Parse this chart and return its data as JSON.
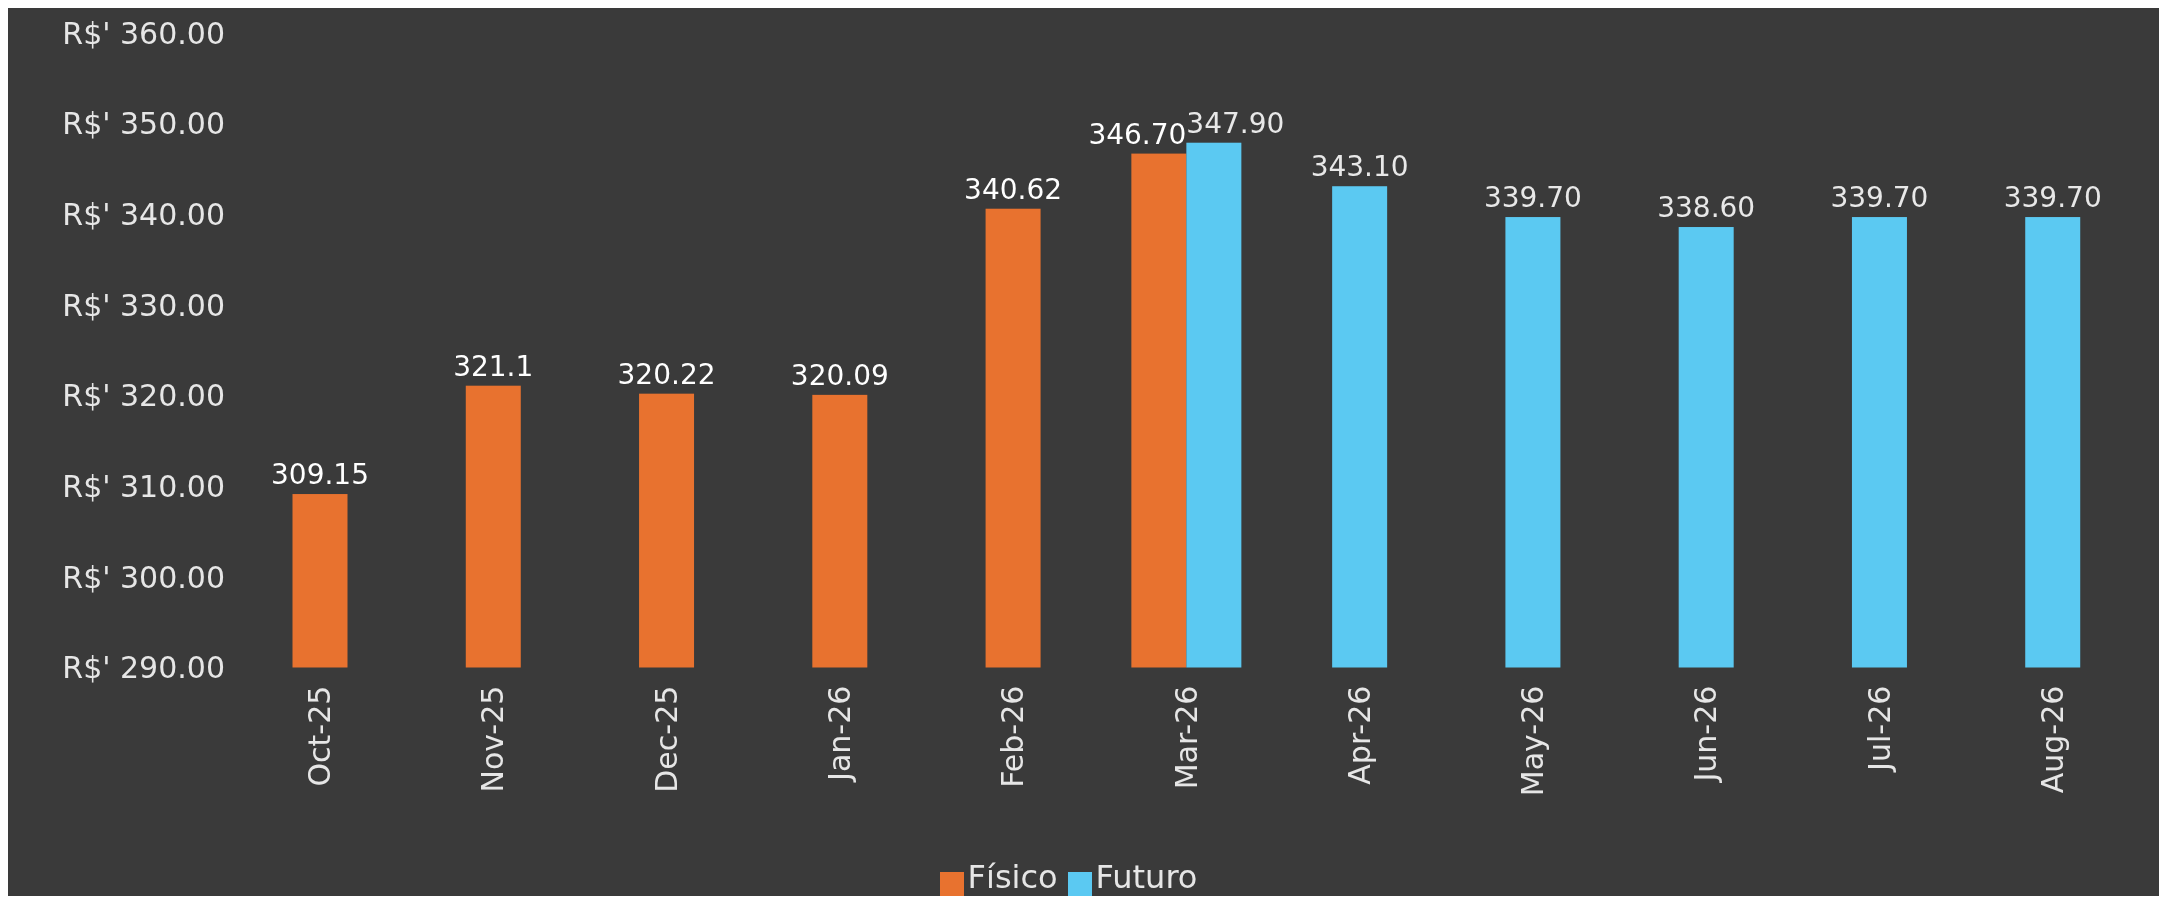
{
  "chart_data": {
    "type": "bar",
    "categories": [
      "Oct-25",
      "Nov-25",
      "Dec-25",
      "Jan-26",
      "Feb-26",
      "Mar-26",
      "Apr-26",
      "May-26",
      "Jun-26",
      "Jul-26",
      "Aug-26"
    ],
    "series": [
      {
        "name": "Físico",
        "color": "#e8722f",
        "values": [
          309.15,
          321.1,
          320.22,
          320.09,
          340.62,
          346.7,
          null,
          null,
          null,
          null,
          null
        ],
        "value_labels": [
          "309.15",
          "321.1",
          "320.22",
          "320.09",
          "340.62",
          "346.70",
          null,
          null,
          null,
          null,
          null
        ]
      },
      {
        "name": "Futuro",
        "color": "#5bc9f2",
        "values": [
          null,
          null,
          null,
          null,
          null,
          347.9,
          343.1,
          339.7,
          338.6,
          339.7,
          339.7
        ],
        "value_labels": [
          null,
          null,
          null,
          null,
          null,
          "347.90",
          "343.10",
          "339.70",
          "338.60",
          "339.70",
          "339.70"
        ]
      }
    ],
    "ylim": [
      290,
      360
    ],
    "yticks": [
      {
        "value": 290,
        "label": "R$' 290.00"
      },
      {
        "value": 300,
        "label": "R$' 300.00"
      },
      {
        "value": 310,
        "label": "R$' 310.00"
      },
      {
        "value": 320,
        "label": "R$' 320.00"
      },
      {
        "value": 330,
        "label": "R$' 330.00"
      },
      {
        "value": 340,
        "label": "R$' 340.00"
      },
      {
        "value": 350,
        "label": "R$' 350.00"
      },
      {
        "value": 360,
        "label": "R$' 360.00"
      }
    ],
    "grid": false,
    "legend": "bottom"
  }
}
